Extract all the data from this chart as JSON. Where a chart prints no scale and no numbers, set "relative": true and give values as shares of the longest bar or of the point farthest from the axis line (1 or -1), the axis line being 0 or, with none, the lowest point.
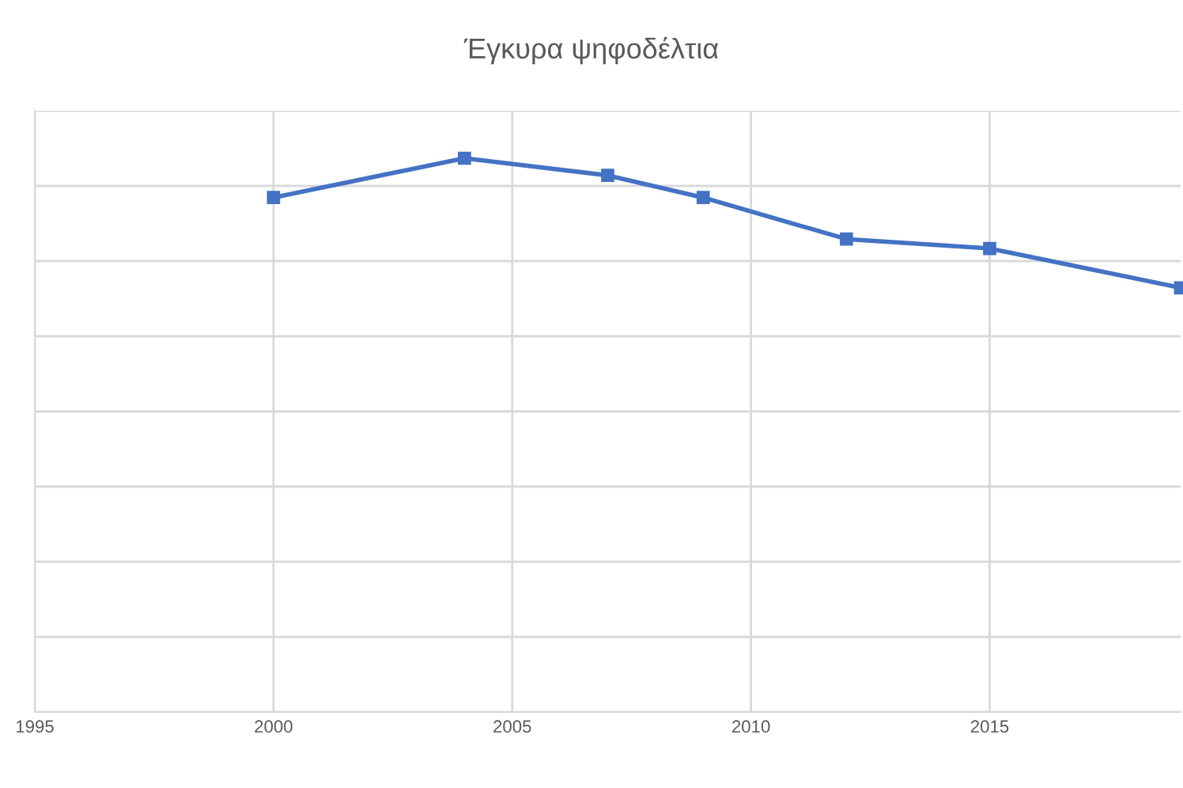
{
  "chart_data": {
    "type": "line",
    "title": "Έγκυρα ψηφοδέλτια",
    "relative": true,
    "x": [
      2000,
      2004,
      2007,
      2009,
      2012,
      2015,
      2019
    ],
    "series": [
      {
        "color": "#4472c4",
        "values": [
          0.929,
          1,
          0.969,
          0.929,
          0.854,
          0.837,
          0.766
        ]
      }
    ],
    "xlim": [
      1995,
      2019
    ],
    "xticks": [
      1995,
      2000,
      2005,
      2010,
      2015
    ],
    "tick_labels": "x",
    "grid": true,
    "marker": "square",
    "line_style": "solid"
  }
}
